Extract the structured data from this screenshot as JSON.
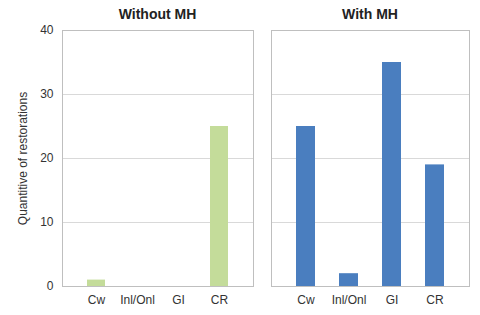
{
  "chart_data": [
    {
      "type": "bar",
      "title": "Without MH",
      "y_label": "Quantitive of restorations",
      "categories": [
        "Cw",
        "Inl/Onl",
        "GI",
        "CR"
      ],
      "values": [
        1,
        0,
        0,
        25
      ],
      "color": "#c4dc9a",
      "ylim": [
        0,
        40
      ],
      "yticks": [
        0,
        10,
        20,
        30,
        40
      ],
      "grid": true
    },
    {
      "type": "bar",
      "title": "With MH",
      "categories": [
        "Cw",
        "Inl/Onl",
        "GI",
        "CR"
      ],
      "values": [
        25,
        2,
        35,
        19
      ],
      "color": "#4a7ebf",
      "ylim": [
        0,
        40
      ],
      "yticks": [
        0,
        10,
        20,
        30,
        40
      ],
      "grid": true,
      "tick_labels": "x"
    }
  ]
}
